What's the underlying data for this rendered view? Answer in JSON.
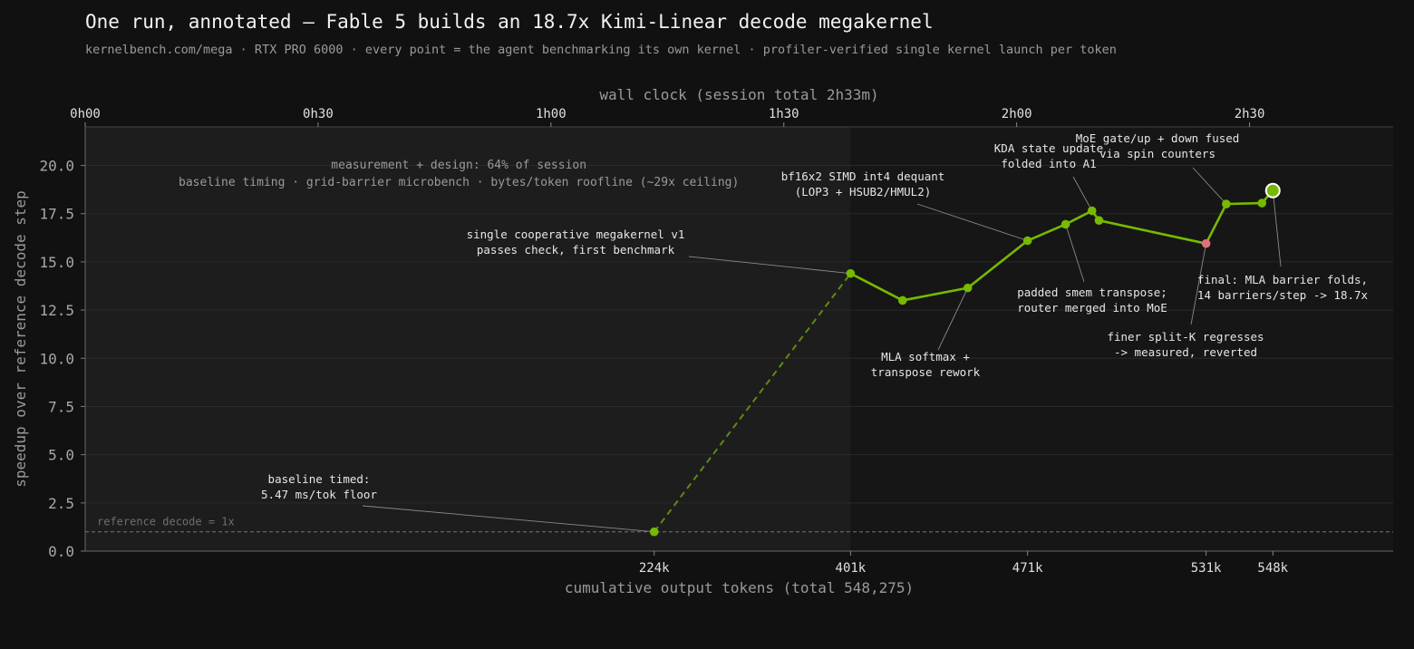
{
  "title": "One run, annotated — Fable 5 builds an 18.7x Kimi-Linear decode megakernel",
  "subtitle": "kernelbench.com/mega · RTX PRO 6000 · every point = the agent benchmarking its own kernel · profiler-verified single kernel launch per token",
  "colors": {
    "background": "#111111",
    "plot_bg": "#161616",
    "shaded_region": "#1d1d1d",
    "line": "#76b900",
    "regression_point": "#e0707a",
    "annotation_text": "#e6e6e6",
    "muted_text": "#9a9a9a"
  },
  "chart_data": {
    "type": "line",
    "xlabel": "cumulative output tokens (total 548,275)",
    "ylabel": "speedup over reference decode step",
    "top_axis_label": "wall clock (session total 2h33m)",
    "top_ticks": [
      "0h00",
      "0h30",
      "1h00",
      "1h30",
      "2h00",
      "2h30"
    ],
    "top_tick_minutes": [
      0,
      30,
      60,
      90,
      120,
      150
    ],
    "x_ticks": [
      224,
      401,
      471,
      531,
      548
    ],
    "x_tick_labels": [
      "224k",
      "401k",
      "471k",
      "531k",
      "548k"
    ],
    "y_ticks": [
      "0.0",
      "2.5",
      "5.0",
      "7.5",
      "10.0",
      "12.5",
      "15.0",
      "17.5",
      "20.0"
    ],
    "y_tick_values": [
      0,
      2.5,
      5,
      7.5,
      10,
      12.5,
      15,
      17.5,
      20
    ],
    "ylim": [
      0,
      22
    ],
    "grid": "horizontal",
    "reference_line": {
      "value": 1.0,
      "label": "reference decode = 1x"
    },
    "shaded_region": {
      "label_line1": "measurement + design: 64% of session",
      "label_line2": "baseline timing · grid-barrier microbench · bytes/token roofline (~29x ceiling)"
    },
    "segments": {
      "design_gap": {
        "style": "dashed",
        "point_indices": [
          0,
          1
        ]
      },
      "main": {
        "style": "solid",
        "point_indices": [
          1,
          2,
          3,
          4,
          5,
          6,
          7,
          8,
          9,
          10,
          11
        ]
      }
    },
    "points": [
      {
        "minutes": 73.3,
        "tokens_k": 224,
        "speedup": 1.0
      },
      {
        "minutes": 98.6,
        "tokens_k": 401,
        "speedup": 14.4
      },
      {
        "minutes": 105.3,
        "tokens_k": 425,
        "speedup": 13.0
      },
      {
        "minutes": 113.7,
        "tokens_k": 443,
        "speedup": 13.65
      },
      {
        "minutes": 121.4,
        "tokens_k": 471,
        "speedup": 16.1
      },
      {
        "minutes": 126.3,
        "tokens_k": 478,
        "speedup": 16.95
      },
      {
        "minutes": 129.7,
        "tokens_k": 485,
        "speedup": 17.65
      },
      {
        "minutes": 130.6,
        "tokens_k": 488,
        "speedup": 17.15
      },
      {
        "minutes": 144.4,
        "tokens_k": 531,
        "speedup": 15.95,
        "regression": true
      },
      {
        "minutes": 147.0,
        "tokens_k": 538,
        "speedup": 18.0
      },
      {
        "minutes": 151.6,
        "tokens_k": 543,
        "speedup": 18.05
      },
      {
        "minutes": 153.0,
        "tokens_k": 548,
        "speedup": 18.7,
        "final": true
      }
    ],
    "annotations": [
      {
        "text": [
          "baseline timed:",
          "5.47 ms/tok floor"
        ],
        "point_index": 0
      },
      {
        "text": [
          "single cooperative megakernel v1",
          "passes check, first benchmark"
        ],
        "point_index": 1
      },
      {
        "text": [
          "MLA softmax +",
          "transpose rework"
        ],
        "point_index": 3
      },
      {
        "text": [
          "bf16x2 SIMD int4 dequant",
          "(LOP3 + HSUB2/HMUL2)"
        ],
        "point_index": 4
      },
      {
        "text": [
          "padded smem transpose;",
          "router merged into MoE"
        ],
        "point_index": 5
      },
      {
        "text": [
          "KDA state update",
          "folded into A1"
        ],
        "point_index": 6
      },
      {
        "text": [
          "finer split-K regresses",
          "-> measured, reverted"
        ],
        "point_index": 8
      },
      {
        "text": [
          "MoE gate/up + down fused",
          "via spin counters"
        ],
        "point_index": 9
      },
      {
        "text": [
          "final: MLA barrier folds,",
          "14 barriers/step -> 18.7x"
        ],
        "point_index": 11
      }
    ]
  }
}
